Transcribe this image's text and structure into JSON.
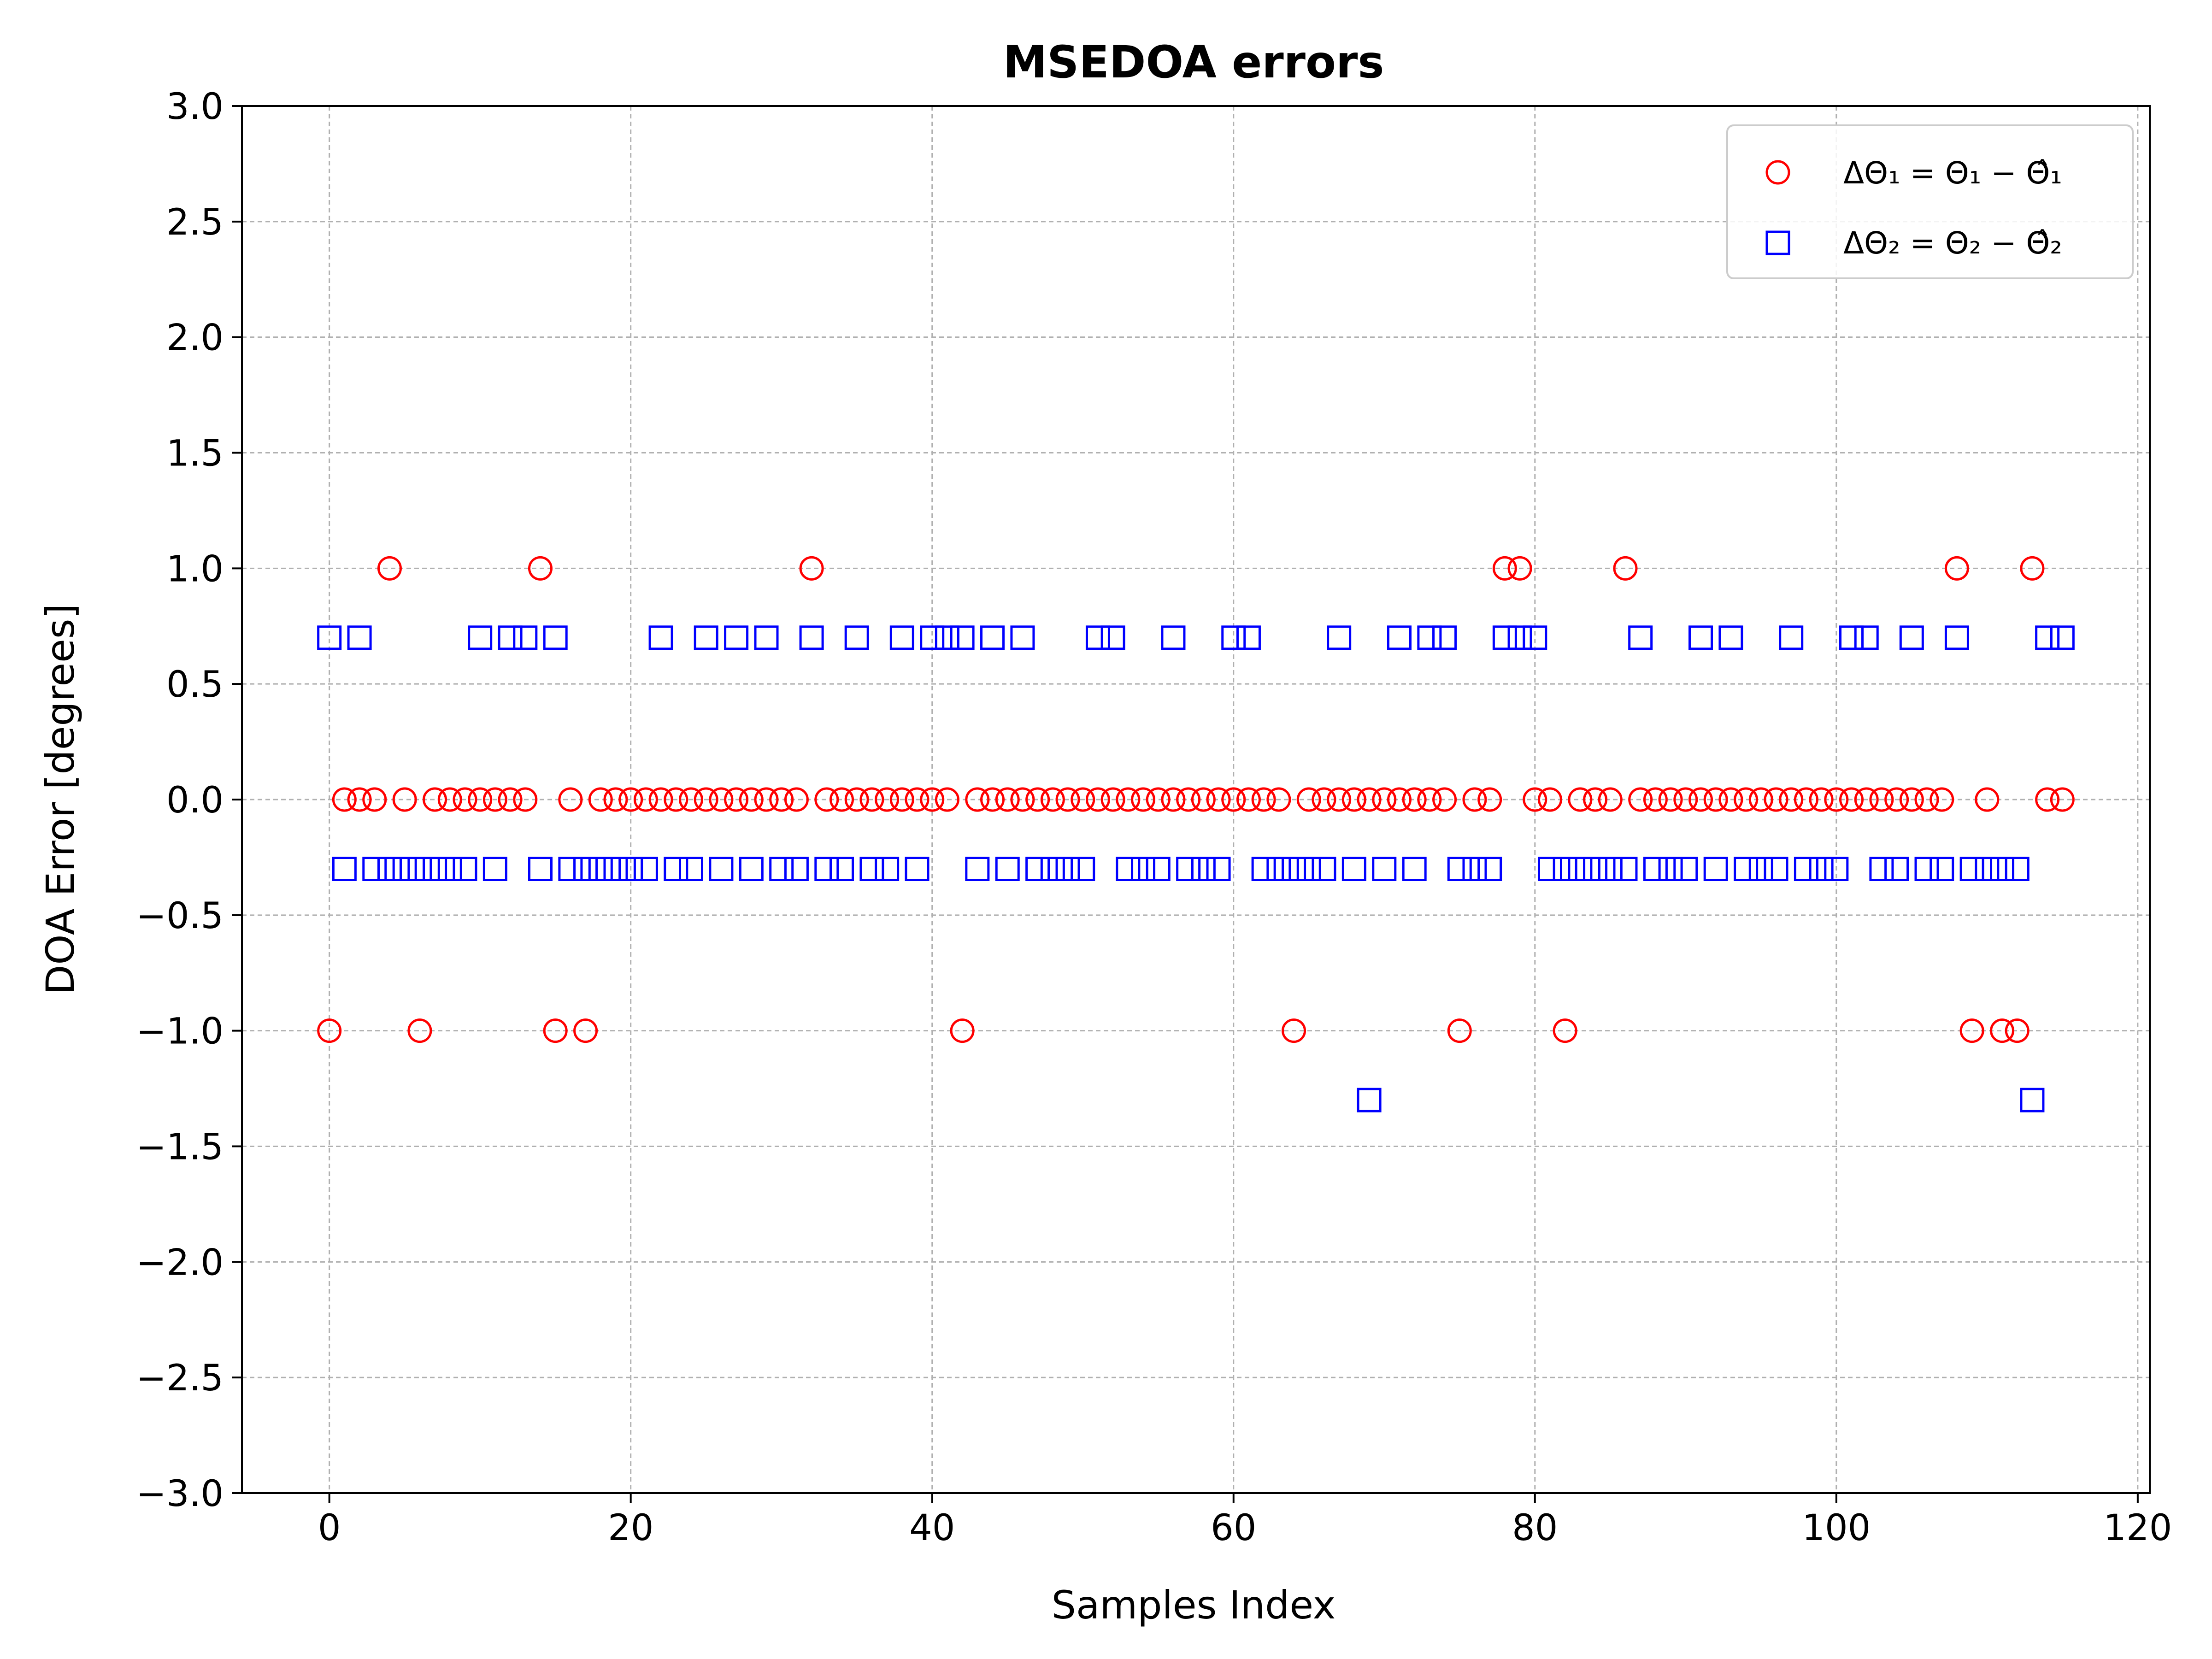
{
  "chart_data": {
    "type": "scatter",
    "title": "MSEDOA errors",
    "xlabel": "Samples Index",
    "ylabel": "DOA Error [degrees]",
    "xlim": [
      -5.8,
      120.8
    ],
    "ylim": [
      -3.0,
      3.0
    ],
    "xticks": [
      0,
      20,
      40,
      60,
      80,
      100,
      120
    ],
    "xtick_labels": [
      "0",
      "20",
      "40",
      "60",
      "80",
      "100",
      "120"
    ],
    "yticks": [
      3.0,
      2.5,
      2.0,
      1.5,
      1.0,
      0.5,
      0.0,
      -0.5,
      -1.0,
      -1.5,
      -2.0,
      -2.5,
      -3.0
    ],
    "ytick_labels": [
      "3.0",
      "2.5",
      "2.0",
      "1.5",
      "1.0",
      "0.5",
      "0.0",
      "−0.5",
      "−1.0",
      "−1.5",
      "−2.0",
      "−2.5",
      "−3.0"
    ],
    "grid": true,
    "legend_position": "top-right",
    "series": [
      {
        "name": "ΔΘ₁ = Θ₁ − Θ̂₁",
        "marker": "circle",
        "color": "#ff0000",
        "x": [
          0,
          1,
          2,
          3,
          4,
          5,
          6,
          7,
          8,
          9,
          10,
          11,
          12,
          13,
          14,
          15,
          16,
          17,
          18,
          19,
          20,
          21,
          22,
          23,
          24,
          25,
          26,
          27,
          28,
          29,
          30,
          31,
          32,
          33,
          34,
          35,
          36,
          37,
          38,
          39,
          40,
          41,
          42,
          43,
          44,
          45,
          46,
          47,
          48,
          49,
          50,
          51,
          52,
          53,
          54,
          55,
          56,
          57,
          58,
          59,
          60,
          61,
          62,
          63,
          64,
          65,
          66,
          67,
          68,
          69,
          70,
          71,
          72,
          73,
          74,
          75,
          76,
          77,
          78,
          79,
          80,
          81,
          82,
          83,
          84,
          85,
          86,
          87,
          88,
          89,
          90,
          91,
          92,
          93,
          94,
          95,
          96,
          97,
          98,
          99,
          100,
          101,
          102,
          103,
          104,
          105,
          106,
          107,
          108,
          109,
          110,
          111,
          112,
          113,
          114,
          115
        ],
        "y": [
          -1,
          0,
          0,
          0,
          1,
          0,
          -1,
          0,
          0,
          0,
          0,
          0,
          0,
          0,
          1,
          -1,
          0,
          -1,
          0,
          0,
          0,
          0,
          0,
          0,
          0,
          0,
          0,
          0,
          0,
          0,
          0,
          0,
          1,
          0,
          0,
          0,
          0,
          0,
          0,
          0,
          0,
          0,
          -1,
          0,
          0,
          0,
          0,
          0,
          0,
          0,
          0,
          0,
          0,
          0,
          0,
          0,
          0,
          0,
          0,
          0,
          0,
          0,
          0,
          0,
          -1,
          0,
          0,
          0,
          0,
          0,
          0,
          0,
          0,
          0,
          0,
          -1,
          0,
          0,
          1,
          1,
          0,
          0,
          -1,
          0,
          0,
          0,
          1,
          0,
          0,
          0,
          0,
          0,
          0,
          0,
          0,
          0,
          0,
          0,
          0,
          0,
          0,
          0,
          0,
          0,
          0,
          0,
          0,
          0,
          1,
          -1,
          0,
          -1,
          -1,
          1,
          0,
          0
        ]
      },
      {
        "name": "ΔΘ₂ = Θ₂ − Θ̂₂",
        "marker": "square",
        "color": "#0000ff",
        "x": [
          0,
          1,
          2,
          3,
          4,
          5,
          6,
          7,
          8,
          9,
          10,
          11,
          12,
          13,
          14,
          15,
          16,
          17,
          18,
          19,
          20,
          21,
          22,
          23,
          24,
          25,
          26,
          27,
          28,
          29,
          30,
          31,
          32,
          33,
          34,
          35,
          36,
          37,
          38,
          39,
          40,
          41,
          42,
          43,
          44,
          45,
          46,
          47,
          48,
          49,
          50,
          51,
          52,
          53,
          54,
          55,
          56,
          57,
          58,
          59,
          60,
          61,
          62,
          63,
          64,
          65,
          66,
          67,
          68,
          69,
          70,
          71,
          72,
          73,
          74,
          75,
          76,
          77,
          78,
          79,
          80,
          81,
          82,
          83,
          84,
          85,
          86,
          87,
          88,
          89,
          90,
          91,
          92,
          93,
          94,
          95,
          96,
          97,
          98,
          99,
          100,
          101,
          102,
          103,
          104,
          105,
          106,
          107,
          108,
          109,
          110,
          111,
          112,
          113,
          114,
          115
        ],
        "y": [
          0.7,
          -0.3,
          0.7,
          -0.3,
          -0.3,
          -0.3,
          -0.3,
          -0.3,
          -0.3,
          -0.3,
          0.7,
          -0.3,
          0.7,
          0.7,
          -0.3,
          0.7,
          -0.3,
          -0.3,
          -0.3,
          -0.3,
          -0.3,
          -0.3,
          0.7,
          -0.3,
          -0.3,
          0.7,
          -0.3,
          0.7,
          -0.3,
          0.7,
          -0.3,
          -0.3,
          0.7,
          -0.3,
          -0.3,
          0.7,
          -0.3,
          -0.3,
          0.7,
          -0.3,
          0.7,
          0.7,
          0.7,
          -0.3,
          0.7,
          -0.3,
          0.7,
          -0.3,
          -0.3,
          -0.3,
          -0.3,
          0.7,
          0.7,
          -0.3,
          -0.3,
          -0.3,
          0.7,
          -0.3,
          -0.3,
          -0.3,
          0.7,
          0.7,
          -0.3,
          -0.3,
          -0.3,
          -0.3,
          -0.3,
          0.7,
          -0.3,
          -1.3,
          -0.3,
          0.7,
          -0.3,
          0.7,
          0.7,
          -0.3,
          -0.3,
          -0.3,
          0.7,
          0.7,
          0.7,
          -0.3,
          -0.3,
          -0.3,
          -0.3,
          -0.3,
          -0.3,
          0.7,
          -0.3,
          -0.3,
          -0.3,
          0.7,
          -0.3,
          0.7,
          -0.3,
          -0.3,
          -0.3,
          0.7,
          -0.3,
          -0.3,
          -0.3,
          0.7,
          0.7,
          -0.3,
          -0.3,
          0.7,
          -0.3,
          -0.3,
          0.7,
          -0.3,
          -0.3,
          -0.3,
          -0.3,
          -1.3,
          0.7,
          0.7
        ]
      }
    ]
  }
}
